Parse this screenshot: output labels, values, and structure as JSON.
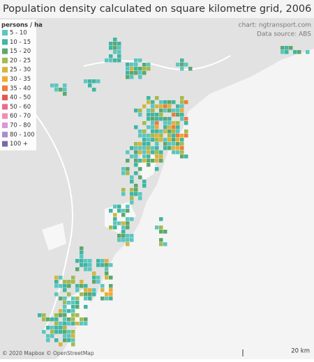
{
  "title": "Population density calculated on square kilometre grid, 2006",
  "legend": {
    "title": "persons / ha",
    "items": [
      {
        "label": "5 - 10",
        "color": "#5cc6c0"
      },
      {
        "label": "10 - 15",
        "color": "#3fb6a3"
      },
      {
        "label": "15 - 20",
        "color": "#5ba86c"
      },
      {
        "label": "20 - 25",
        "color": "#a3bb4c"
      },
      {
        "label": "25 - 30",
        "color": "#d6b53c"
      },
      {
        "label": "30 - 35",
        "color": "#f1a932"
      },
      {
        "label": "35 - 40",
        "color": "#ee7c3a"
      },
      {
        "label": "40 - 50",
        "color": "#e6564f"
      },
      {
        "label": "50 - 60",
        "color": "#ea6c8b"
      },
      {
        "label": "60 - 70",
        "color": "#f08db5"
      },
      {
        "label": "70 - 80",
        "color": "#d79ad6"
      },
      {
        "label": "80 - 100",
        "color": "#a88ccf"
      },
      {
        "label": "100 +",
        "color": "#7a69a6"
      }
    ]
  },
  "credit": "chart: ngtransport.com",
  "source": "Data source: ABS",
  "attribution": "© 2020 Mapbox © OpenStreetMap",
  "scale": "20 km"
}
